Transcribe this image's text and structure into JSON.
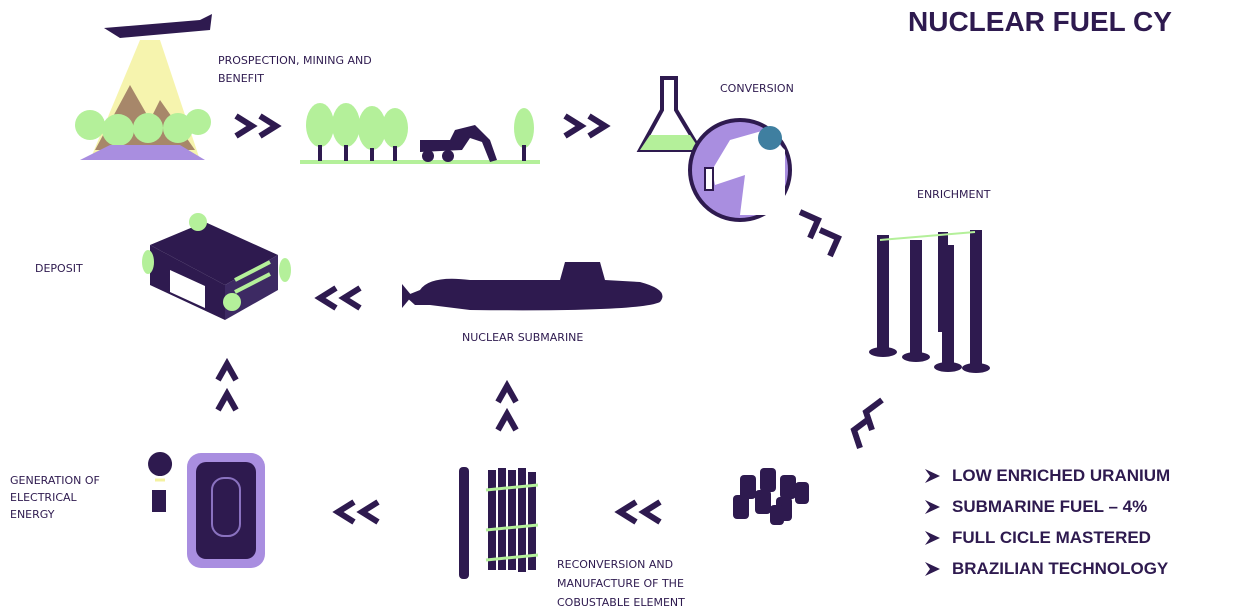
{
  "title": "NUCLEAR FUEL CY",
  "nodes": [
    {
      "lines": [
        "PROSPECTION, MINING AND",
        "BENEFIT"
      ]
    },
    {
      "lines": [
        "CONVERSION"
      ]
    },
    {
      "lines": [
        "ENRICHMENT"
      ]
    },
    {
      "lines": [
        "DEPOSIT"
      ]
    },
    {
      "lines": [
        "NUCLEAR SUBMARINE"
      ]
    },
    {
      "lines": [
        "GENERATION OF",
        "ELECTRICAL",
        "ENERGY"
      ]
    },
    {
      "lines": [
        "RECONVERSION AND",
        "MANUFACTURE OF THE",
        "COBUSTABLE ELEMENT"
      ]
    }
  ],
  "highlights": [
    "LOW ENRICHED URANIUM",
    "SUBMARINE FUEL – 4%",
    "FULL CICLE MASTERED",
    "BRAZILIAN TECHNOLOGY"
  ]
}
